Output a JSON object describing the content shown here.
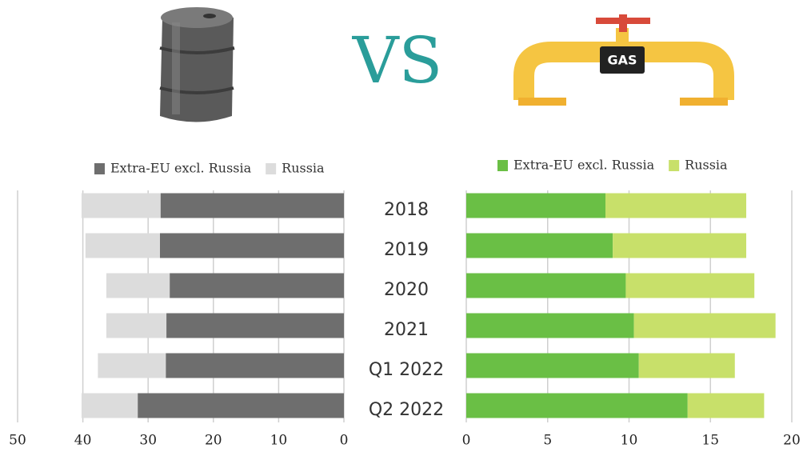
{
  "banner": {
    "vs": "VS",
    "gas_icon_label": "GAS"
  },
  "chart_data": [
    {
      "type": "stacked-hbar",
      "categories": [
        "2018",
        "2019",
        "2020",
        "2021",
        "Q1 2022",
        "Q2 2022"
      ],
      "series": [
        {
          "name": "Extra-EU excl. Russia",
          "color": "#6e6e6e",
          "values": [
            28.1,
            28.2,
            26.7,
            27.2,
            27.3,
            31.6
          ]
        },
        {
          "name": "Russia",
          "color": "#dcdcdc",
          "values": [
            12.1,
            11.4,
            9.7,
            9.2,
            10.4,
            8.6
          ]
        }
      ],
      "xlim": [
        50,
        0
      ],
      "xticks": [
        50,
        40,
        30,
        20,
        10,
        0
      ],
      "grid": true
    },
    {
      "type": "stacked-hbar",
      "categories": [
        "2018",
        "2019",
        "2020",
        "2021",
        "Q1 2022",
        "Q2 2022"
      ],
      "series": [
        {
          "name": "Extra-EU excl. Russia",
          "color": "#6abf45",
          "values": [
            8.55,
            9.0,
            9.8,
            10.3,
            10.6,
            13.6
          ]
        },
        {
          "name": "Russia",
          "color": "#c8e06a",
          "values": [
            8.65,
            8.2,
            7.9,
            8.7,
            5.9,
            4.7
          ]
        }
      ],
      "xlim": [
        0,
        20
      ],
      "xticks": [
        0,
        5,
        10,
        15,
        20
      ],
      "grid": true
    }
  ]
}
